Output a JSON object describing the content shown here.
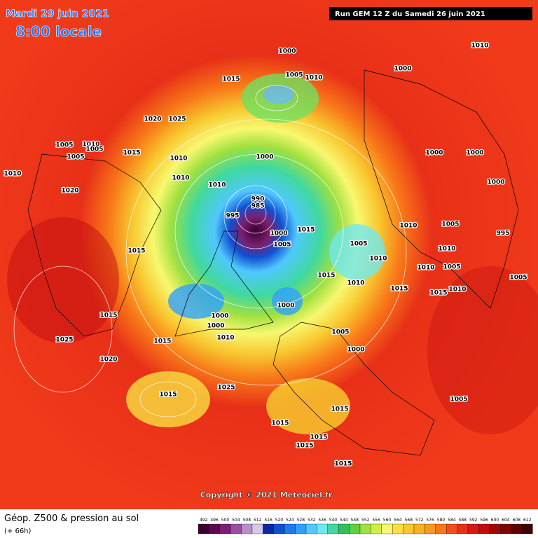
{
  "header": {
    "date": "Mardi 29 juin 2021",
    "time": "8:00 locale",
    "run": "Run GEM 12 Z du Samedi 26 juin 2021"
  },
  "copyright": "Copyright © 2021 Meteociel.fr",
  "footer": {
    "title": "Géop. Z500 & pression au sol",
    "lead": "(+ 66h)"
  },
  "scale": {
    "labels": [
      492,
      496,
      500,
      504,
      508,
      512,
      516,
      520,
      524,
      528,
      532,
      536,
      540,
      544,
      548,
      552,
      556,
      560,
      564,
      568,
      572,
      576,
      580,
      584,
      588,
      592,
      596,
      600,
      604,
      608,
      612
    ],
    "colors": [
      "#3c0030",
      "#5a0a50",
      "#7a2070",
      "#9850a0",
      "#b890c8",
      "#d8c8e8",
      "#0a2aa0",
      "#1050d0",
      "#1f78f0",
      "#30a0ff",
      "#50c8ff",
      "#70e8f0",
      "#40d8a0",
      "#30c060",
      "#60d040",
      "#a0e040",
      "#d0f040",
      "#f8f870",
      "#f8e040",
      "#f8c830",
      "#f8b020",
      "#f89820",
      "#f87818",
      "#f05018",
      "#e83018",
      "#d81818",
      "#c00c10",
      "#a00808",
      "#800404",
      "#600202",
      "#400000"
    ]
  },
  "isobars": [
    "1000",
    "1010",
    "1005",
    "1010",
    "1000",
    "1015",
    "1020",
    "1025",
    "1005",
    "1010",
    "1005",
    "1005",
    "1015",
    "1010",
    "1010",
    "1010",
    "1000",
    "1020",
    "1010",
    "990",
    "985",
    "995",
    "1000",
    "1005",
    "1015",
    "1005",
    "1010",
    "1015",
    "1000",
    "1000",
    "1015",
    "1000",
    "1000",
    "1010",
    "1015",
    "1025",
    "1020",
    "1015",
    "1025",
    "1015",
    "1005",
    "1000",
    "1015",
    "1015",
    "1015",
    "1015",
    "1010",
    "1005",
    "1000",
    "995",
    "1010",
    "1010",
    "1005",
    "1015",
    "1010",
    "1005",
    "1000",
    "1005",
    "1010",
    "1015",
    "1015"
  ]
}
